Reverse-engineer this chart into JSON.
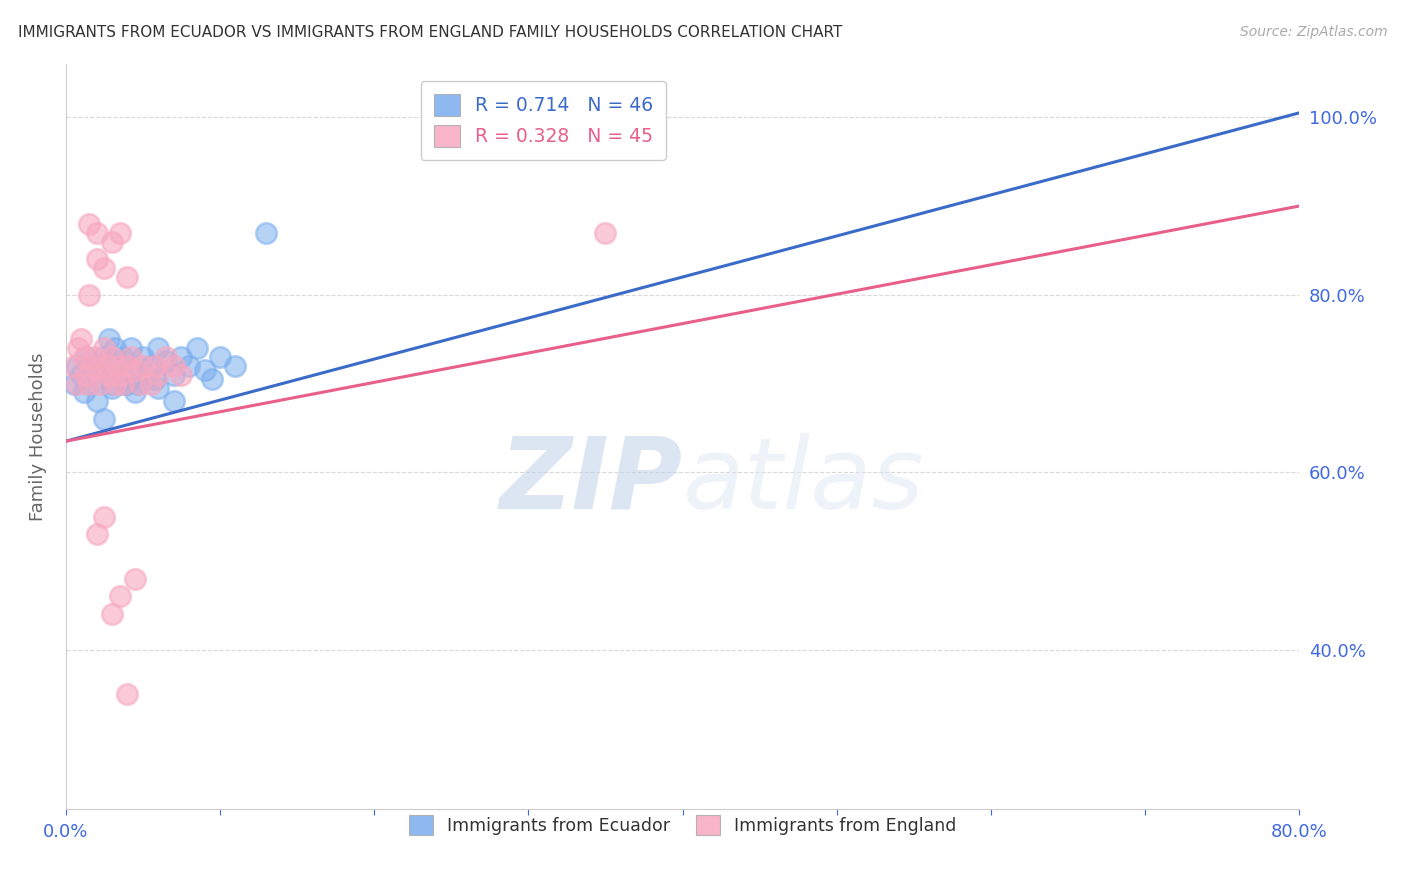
{
  "title": "IMMIGRANTS FROM ECUADOR VS IMMIGRANTS FROM ENGLAND FAMILY HOUSEHOLDS CORRELATION CHART",
  "source": "Source: ZipAtlas.com",
  "ylabel": "Family Households",
  "xlim": [
    0.0,
    0.8
  ],
  "ylim": [
    0.22,
    1.06
  ],
  "y_ticks": [
    0.4,
    0.6,
    0.8,
    1.0
  ],
  "y_tick_labels": [
    "40.0%",
    "60.0%",
    "80.0%",
    "100.0%"
  ],
  "x_ticks": [
    0.0,
    0.1,
    0.2,
    0.3,
    0.4,
    0.5,
    0.6,
    0.7,
    0.8
  ],
  "x_tick_labels": [
    "0.0%",
    "",
    "",
    "",
    "",
    "",
    "",
    "",
    "80.0%"
  ],
  "watermark_zip": "ZIP",
  "watermark_atlas": "atlas",
  "legend_line1": "R = 0.714   N = 46",
  "legend_line2": "R = 0.328   N = 45",
  "legend_label_blue": "Immigrants from Ecuador",
  "legend_label_pink": "Immigrants from England",
  "blue_scatter_color": "#7aadee",
  "pink_scatter_color": "#f7a8c0",
  "blue_line_color": "#3a6bc9",
  "pink_line_color": "#e8608a",
  "blue_edge_color": "#7aadee",
  "pink_edge_color": "#f7a8c0",
  "title_color": "#333333",
  "source_color": "#aaaaaa",
  "axis_label_color": "#4169E1",
  "grid_color": "#d8d8d8",
  "ecuador_x": [
    0.005,
    0.007,
    0.01,
    0.012,
    0.013,
    0.015,
    0.018,
    0.02,
    0.022,
    0.025,
    0.027,
    0.028,
    0.03,
    0.032,
    0.033,
    0.035,
    0.037,
    0.038,
    0.04,
    0.042,
    0.045,
    0.047,
    0.05,
    0.052,
    0.055,
    0.058,
    0.06,
    0.065,
    0.07,
    0.075,
    0.08,
    0.085,
    0.09,
    0.095,
    0.1,
    0.11,
    0.02,
    0.025,
    0.03,
    0.035,
    0.04,
    0.045,
    0.05,
    0.06,
    0.07,
    0.13
  ],
  "ecuador_y": [
    0.7,
    0.72,
    0.71,
    0.69,
    0.73,
    0.7,
    0.72,
    0.715,
    0.705,
    0.73,
    0.725,
    0.75,
    0.7,
    0.74,
    0.72,
    0.71,
    0.73,
    0.7,
    0.72,
    0.74,
    0.715,
    0.7,
    0.73,
    0.71,
    0.72,
    0.705,
    0.74,
    0.725,
    0.71,
    0.73,
    0.72,
    0.74,
    0.715,
    0.705,
    0.73,
    0.72,
    0.68,
    0.66,
    0.695,
    0.71,
    0.7,
    0.69,
    0.705,
    0.695,
    0.68,
    0.87
  ],
  "england_x": [
    0.005,
    0.007,
    0.008,
    0.01,
    0.012,
    0.013,
    0.015,
    0.017,
    0.018,
    0.02,
    0.022,
    0.025,
    0.027,
    0.028,
    0.03,
    0.032,
    0.033,
    0.035,
    0.037,
    0.04,
    0.042,
    0.045,
    0.048,
    0.05,
    0.055,
    0.058,
    0.06,
    0.065,
    0.07,
    0.075,
    0.02,
    0.025,
    0.03,
    0.035,
    0.04,
    0.045,
    0.015,
    0.02,
    0.025,
    0.03,
    0.035,
    0.015,
    0.02,
    0.04,
    0.35
  ],
  "england_y": [
    0.72,
    0.7,
    0.74,
    0.75,
    0.73,
    0.71,
    0.7,
    0.72,
    0.73,
    0.715,
    0.7,
    0.74,
    0.72,
    0.71,
    0.73,
    0.7,
    0.72,
    0.71,
    0.7,
    0.72,
    0.73,
    0.715,
    0.7,
    0.72,
    0.7,
    0.72,
    0.71,
    0.73,
    0.72,
    0.71,
    0.53,
    0.55,
    0.44,
    0.46,
    0.35,
    0.48,
    0.8,
    0.84,
    0.83,
    0.86,
    0.87,
    0.88,
    0.87,
    0.82,
    0.87
  ],
  "blue_trendline": [
    0.0,
    0.8,
    0.635,
    1.005
  ],
  "pink_trendline": [
    0.0,
    0.8,
    0.635,
    0.9
  ]
}
